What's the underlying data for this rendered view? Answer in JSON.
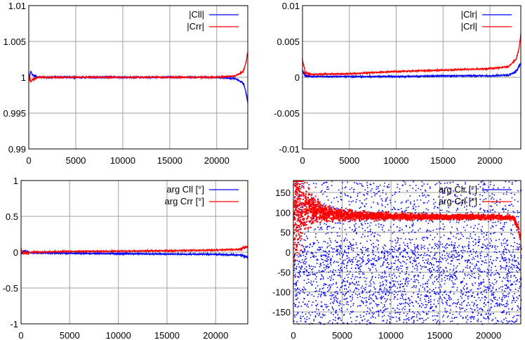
{
  "chart_data": [
    {
      "type": "line",
      "title": "",
      "xlabel": "",
      "ylabel": "",
      "xlim": [
        0,
        23300
      ],
      "ylim": [
        0.99,
        1.01
      ],
      "xticks": [
        "0",
        "5000",
        "10000",
        "15000",
        "20000"
      ],
      "xtick_values": [
        0,
        5000,
        10000,
        15000,
        20000
      ],
      "yticks": [
        "0.99",
        "0.995",
        "1",
        "1.005",
        "1.01"
      ],
      "ytick_values": [
        0.99,
        0.995,
        1,
        1.005,
        1.01
      ],
      "grid": true,
      "legend": "top-right",
      "series": [
        {
          "name": "|Cll|",
          "color": "#0000ff",
          "x": [
            0,
            200,
            500,
            1000,
            5000,
            10000,
            15000,
            20000,
            22000,
            22800,
            23100,
            23300
          ],
          "y": [
            0.9995,
            1.0008,
            1.0002,
            1.0,
            1.0,
            1.0,
            1.0,
            1.0,
            0.9998,
            0.9992,
            0.998,
            0.9965
          ]
        },
        {
          "name": "|Crr|",
          "color": "#ff0000",
          "x": [
            0,
            200,
            500,
            1000,
            5000,
            10000,
            15000,
            20000,
            22000,
            22800,
            23100,
            23300
          ],
          "y": [
            1.0005,
            0.9994,
            0.9998,
            1.0,
            1.0,
            1.0,
            1.0,
            1.0,
            1.0002,
            1.0008,
            1.002,
            1.0035
          ]
        }
      ]
    },
    {
      "type": "line",
      "title": "",
      "xlabel": "",
      "ylabel": "",
      "xlim": [
        0,
        23300
      ],
      "ylim": [
        -0.01,
        0.01
      ],
      "xticks": [
        "0",
        "5000",
        "10000",
        "15000",
        "20000"
      ],
      "xtick_values": [
        0,
        5000,
        10000,
        15000,
        20000
      ],
      "yticks": [
        "-0.01",
        "-0.005",
        "0",
        "0.005",
        "0.01"
      ],
      "ytick_values": [
        -0.01,
        -0.005,
        0,
        0.005,
        0.01
      ],
      "grid": true,
      "legend": "top-right",
      "series": [
        {
          "name": "|Clr|",
          "color": "#0000ff",
          "x": [
            0,
            300,
            1000,
            5000,
            10000,
            15000,
            20000,
            22000,
            22800,
            23300
          ],
          "y": [
            0.0008,
            0.0002,
            0.0001,
            0.0001,
            0.0001,
            0.0002,
            0.0002,
            0.0003,
            0.0008,
            0.002
          ]
        },
        {
          "name": "|Crl|",
          "color": "#ff0000",
          "x": [
            0,
            300,
            1000,
            5000,
            10000,
            15000,
            20000,
            22000,
            22800,
            23100,
            23300
          ],
          "y": [
            0.0025,
            0.0006,
            0.0004,
            0.0005,
            0.0008,
            0.001,
            0.0012,
            0.0015,
            0.0025,
            0.004,
            0.006
          ]
        }
      ]
    },
    {
      "type": "line",
      "title": "",
      "xlabel": "",
      "ylabel": "",
      "xlim": [
        0,
        23300
      ],
      "ylim": [
        -1,
        1
      ],
      "xticks": [
        "0",
        "5000",
        "10000",
        "15000",
        "20000"
      ],
      "xtick_values": [
        0,
        5000,
        10000,
        15000,
        20000
      ],
      "yticks": [
        "-1",
        "-0.5",
        "0",
        "0.5",
        "1"
      ],
      "ytick_values": [
        -1,
        -0.5,
        0,
        0.5,
        1
      ],
      "grid": true,
      "legend": "top-right",
      "series": [
        {
          "name": "arg Cll [°]",
          "color": "#0000ff",
          "x": [
            0,
            300,
            1000,
            5000,
            10000,
            15000,
            20000,
            22500,
            23300
          ],
          "y": [
            -0.03,
            0.02,
            -0.01,
            -0.015,
            -0.02,
            -0.025,
            -0.03,
            -0.04,
            -0.07
          ]
        },
        {
          "name": "arg Crr [°]",
          "color": "#ff0000",
          "x": [
            0,
            300,
            1000,
            5000,
            10000,
            15000,
            20000,
            22500,
            23300
          ],
          "y": [
            0.03,
            -0.02,
            0.0,
            0.01,
            0.015,
            0.02,
            0.03,
            0.04,
            0.08
          ]
        }
      ]
    },
    {
      "type": "scatter",
      "title": "",
      "xlabel": "",
      "ylabel": "",
      "xlim": [
        0,
        23300
      ],
      "ylim": [
        -180,
        180
      ],
      "xticks": [
        "0",
        "5000",
        "10000",
        "15000",
        "20000"
      ],
      "xtick_values": [
        0,
        5000,
        10000,
        15000,
        20000
      ],
      "yticks": [
        "-150",
        "-100",
        "-50",
        "0",
        "50",
        "100",
        "150"
      ],
      "ytick_values": [
        -150,
        -100,
        -50,
        0,
        50,
        100,
        150
      ],
      "grid": true,
      "legend": "top-right",
      "series": [
        {
          "name": "arg Clr [°]",
          "color": "#0000ff",
          "distribution": "uniform",
          "yrange": [
            -180,
            180
          ]
        },
        {
          "name": "arg Crl [°]",
          "color": "#ff0000",
          "x": [
            0,
            500,
            1000,
            2000,
            3000,
            5000,
            10000,
            15000,
            20000,
            22500,
            23000,
            23300
          ],
          "y": [
            90,
            110,
            115,
            110,
            100,
            95,
            92,
            90,
            90,
            88,
            60,
            10
          ],
          "spread": [
            180,
            150,
            90,
            50,
            30,
            20,
            12,
            10,
            10,
            10,
            15,
            20
          ]
        }
      ]
    }
  ]
}
